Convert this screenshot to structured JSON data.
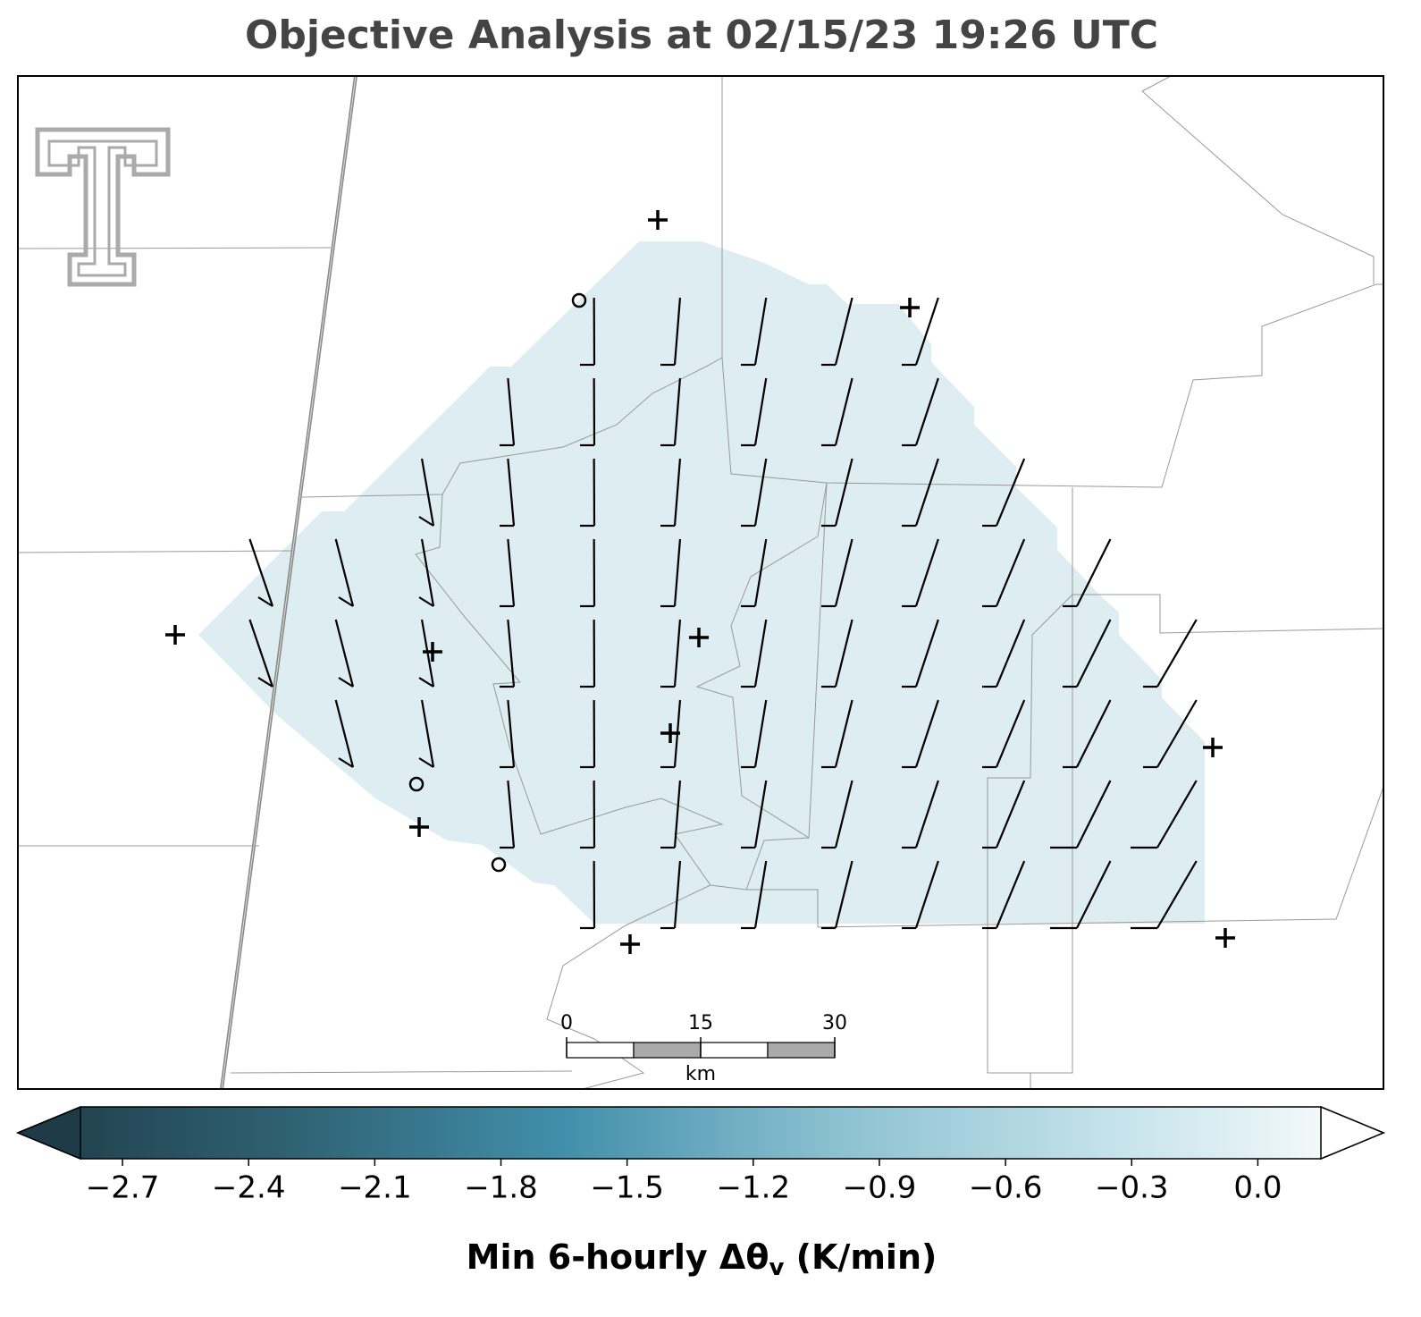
{
  "chart_data": {
    "type": "map",
    "title": "Objective Analysis at 02/15/23 19:26 UTC",
    "colorbar": {
      "label": {
        "main": "Min 6-hourly Δθ",
        "sub": "v",
        "tail": " (K/min)"
      },
      "clim": [
        -2.8,
        0.15
      ],
      "colormap": [
        "#1f3b47",
        "#2f6273",
        "#428fab",
        "#8cc1d1",
        "#c4e2ea",
        "#ffffff"
      ],
      "ticks": [
        {
          "value": -2.7,
          "label": "−2.7"
        },
        {
          "value": -2.4,
          "label": "−2.4"
        },
        {
          "value": -2.1,
          "label": "−2.1"
        },
        {
          "value": -1.8,
          "label": "−1.8"
        },
        {
          "value": -1.5,
          "label": "−1.5"
        },
        {
          "value": -1.2,
          "label": "−1.2"
        },
        {
          "value": -0.9,
          "label": "−0.9"
        },
        {
          "value": -0.6,
          "label": "−0.6"
        },
        {
          "value": -0.3,
          "label": "−0.3"
        },
        {
          "value": 0,
          "label": "0.0"
        }
      ]
    },
    "scale_bar": {
      "ticks": [
        0,
        15,
        30
      ],
      "unit": "km"
    }
  }
}
